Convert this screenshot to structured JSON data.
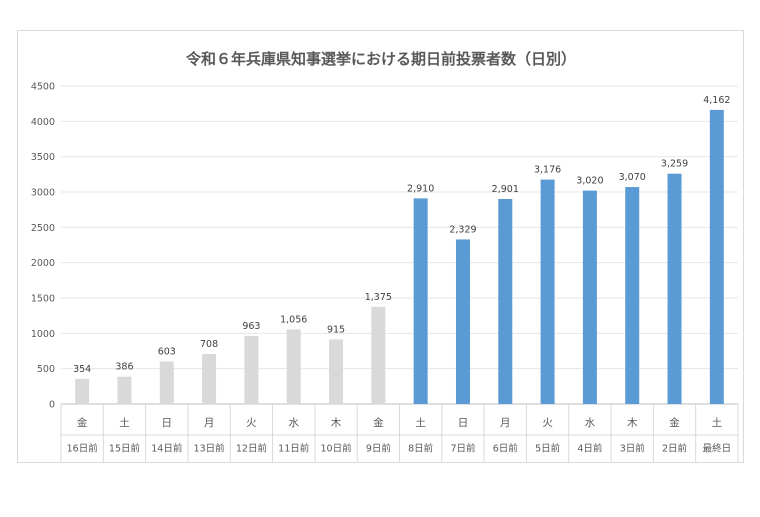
{
  "chart_data": {
    "type": "bar",
    "title": "令和６年兵庫県知事選挙における期日前投票者数（日別）",
    "xlabel": "",
    "ylabel": "",
    "ylim": [
      0,
      4500
    ],
    "yticks": [
      0,
      500,
      1000,
      1500,
      2000,
      2500,
      3000,
      3500,
      4000,
      4500
    ],
    "grid": true,
    "legend": "none",
    "categories": [
      "16日前",
      "15日前",
      "14日前",
      "13日前",
      "12日前",
      "11日前",
      "10日前",
      "9日前",
      "8日前",
      "7日前",
      "6日前",
      "5日前",
      "4日前",
      "3日前",
      "2日前",
      "最終日"
    ],
    "weekdays": [
      "金",
      "土",
      "日",
      "月",
      "火",
      "水",
      "木",
      "金",
      "土",
      "日",
      "月",
      "火",
      "水",
      "木",
      "金",
      "土"
    ],
    "values": [
      354,
      386,
      603,
      708,
      963,
      1056,
      915,
      1375,
      2910,
      2329,
      2901,
      3176,
      3020,
      3070,
      3259,
      4162
    ],
    "value_labels": [
      "354",
      "386",
      "603",
      "708",
      "963",
      "1,056",
      "915",
      "1,375",
      "2,910",
      "2,329",
      "2,901",
      "3,176",
      "3,020",
      "3,070",
      "3,259",
      "4,162"
    ],
    "colors": {
      "early": "#d9d9d9",
      "late": "#5b9bd5"
    },
    "highlight_from_index": 8
  }
}
